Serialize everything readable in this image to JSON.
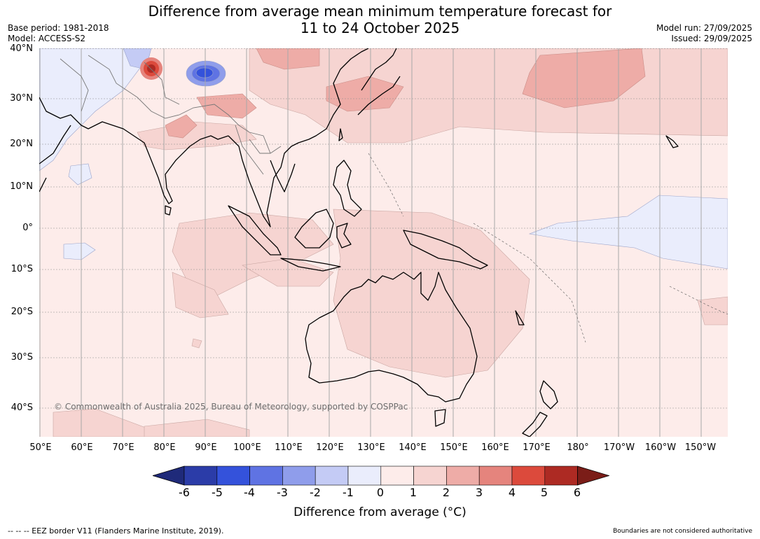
{
  "title_line1": "Difference from average mean minimum temperature forecast for",
  "title_line2": "11 to 24 October 2025",
  "base_period": "Base period: 1981-2018",
  "model": "Model: ACCESS-S2",
  "model_run": "Model run: 27/09/2025",
  "issued": "Issued: 29/09/2025",
  "lat_labels": [
    "40°N",
    "30°N",
    "20°N",
    "10°N",
    "0°",
    "10°S",
    "20°S",
    "30°S",
    "40°S"
  ],
  "lon_labels": [
    "50°E",
    "60°E",
    "70°E",
    "80°E",
    "90°E",
    "100°E",
    "110°E",
    "120°E",
    "130°E",
    "140°E",
    "150°E",
    "160°E",
    "170°E",
    "180°",
    "170°W",
    "160°W",
    "150°W"
  ],
  "colorbar": {
    "ticks": [
      "-6",
      "-5",
      "-4",
      "-3",
      "-2",
      "-1",
      "0",
      "1",
      "2",
      "3",
      "4",
      "5",
      "6"
    ],
    "colors": [
      "#1f2a7a",
      "#2b3ca8",
      "#3452db",
      "#5f73e3",
      "#8f9deb",
      "#c4cbf5",
      "#eaedfc",
      "#fdecea",
      "#f6d4d1",
      "#eeaca7",
      "#e5847d",
      "#dc4a3c",
      "#ad2a23",
      "#7b1d18"
    ],
    "label": "Difference from average (°C)"
  },
  "copyright": "© Commonwealth of Australia 2025, Bureau of Meteorology, supported by COSPPac",
  "footer_left": "-- -- -- EEZ border V11 (Flanders Marine Institute, 2019).",
  "footer_right": "Boundaries are not considered authoritative"
}
